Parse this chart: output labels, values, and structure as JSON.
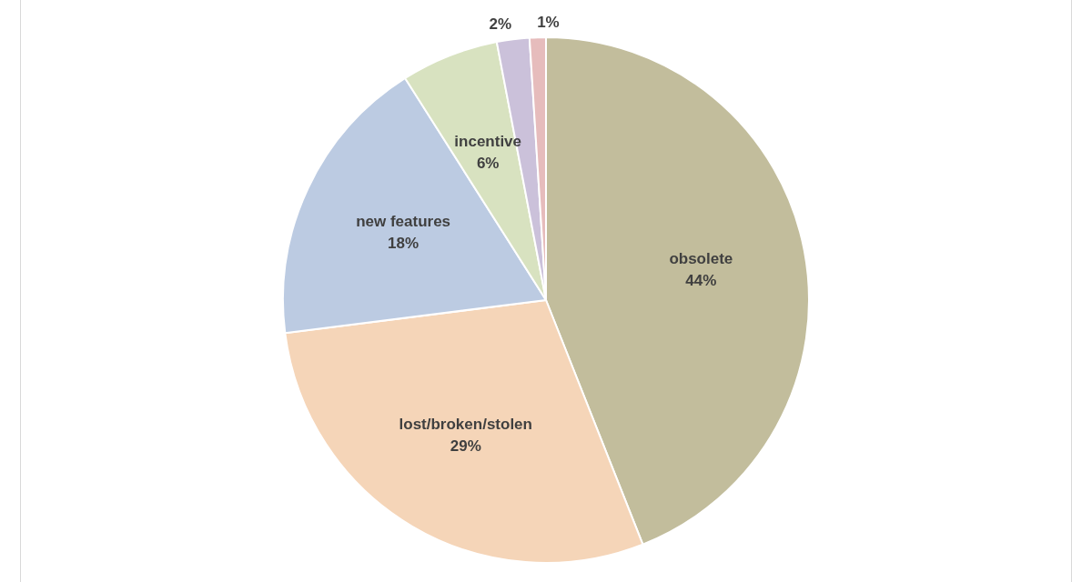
{
  "chart_data": {
    "type": "pie",
    "categories": [
      "obsolete",
      "lost/broken/stolen",
      "new features",
      "incentive",
      null,
      null
    ],
    "values": [
      44,
      29,
      18,
      6,
      2,
      1
    ],
    "value_labels": [
      "44%",
      "29%",
      "18%",
      "6%",
      "2%",
      "1%"
    ],
    "colors": [
      "#c2bd9c",
      "#f5d5b8",
      "#bccbe2",
      "#d8e2c0",
      "#cbc1da",
      "#e6bcbc"
    ]
  }
}
